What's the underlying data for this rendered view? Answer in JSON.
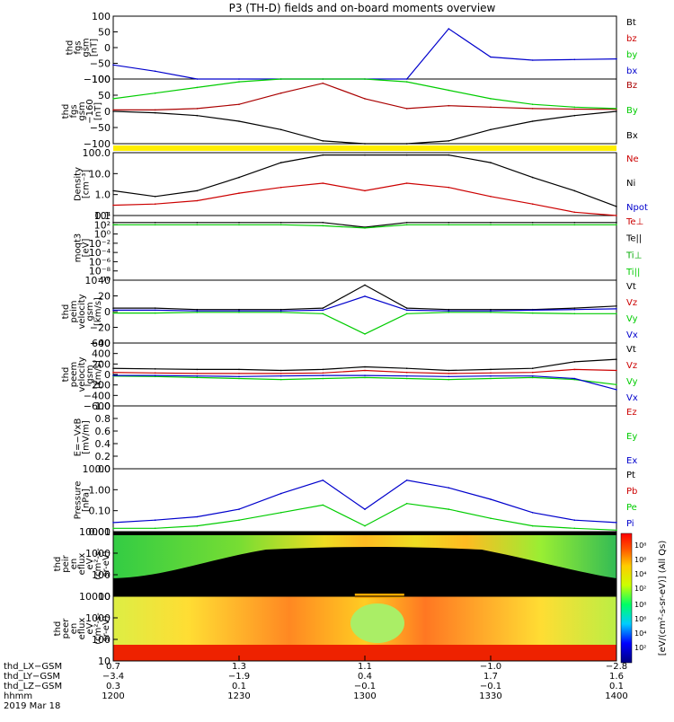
{
  "title": "P3 (TH-D) fields and on-board moments overview",
  "panels": [
    {
      "ylabel": [
        "thd",
        "fgs",
        "gsm",
        "[nT]"
      ],
      "yticks": [
        "100",
        "50",
        "0",
        "−50",
        "−100"
      ],
      "legend": [
        {
          "label": "Bt",
          "color": "#000000"
        },
        {
          "label": "bz",
          "color": "#cc0000"
        },
        {
          "label": "by",
          "color": "#00cc00"
        },
        {
          "label": "bx",
          "color": "#0000cc"
        }
      ]
    },
    {
      "ylabel": [
        "thd",
        "fgs",
        "gsm",
        "−160",
        "[nT]"
      ],
      "yticks": [
        "100",
        "50",
        "0",
        "−50",
        "−100"
      ],
      "legend": [
        {
          "label": "Bz",
          "color": "#aa0000"
        },
        {
          "label": "By",
          "color": "#00cc00"
        },
        {
          "label": "Bx",
          "color": "#000000"
        }
      ]
    },
    {
      "ylabel": [
        "Density",
        "[cm⁻³]"
      ],
      "yticks": [
        "100.0",
        "10.0",
        "1.0",
        "0.1"
      ],
      "legend": [
        {
          "label": "Ne",
          "color": "#cc0000"
        },
        {
          "label": "Ni",
          "color": "#000000"
        },
        {
          "label": "Npot",
          "color": "#0000cc"
        }
      ]
    },
    {
      "ylabel": [
        "moqt3",
        "[eV]"
      ],
      "yticks": [
        "10⁴",
        "10²",
        "10⁰",
        "10⁻²",
        "10⁻⁴",
        "10⁻⁶",
        "10⁻⁸",
        "10⁻¹⁰"
      ],
      "legend": [
        {
          "label": "Te⊥",
          "color": "#cc0000"
        },
        {
          "label": "Te||",
          "color": "#000000"
        },
        {
          "label": "Ti⊥",
          "color": "#00aa00"
        },
        {
          "label": "Ti||",
          "color": "#00cc00"
        }
      ]
    },
    {
      "ylabel": [
        "thd",
        "peim",
        "velocity",
        "gsm",
        "[km/s]"
      ],
      "yticks": [
        "40",
        "20",
        "0",
        "−20",
        "−40"
      ],
      "legend": [
        {
          "label": "Vt",
          "color": "#000000"
        },
        {
          "label": "Vz",
          "color": "#cc0000"
        },
        {
          "label": "Vy",
          "color": "#00cc00"
        },
        {
          "label": "Vx",
          "color": "#0000cc"
        }
      ]
    },
    {
      "ylabel": [
        "thd",
        "peem",
        "velocity",
        "gsm",
        "[km/s]"
      ],
      "yticks": [
        "600",
        "400",
        "200",
        "0",
        "−200",
        "−400",
        "−600"
      ],
      "legend": [
        {
          "label": "Vt",
          "color": "#000000"
        },
        {
          "label": "Vz",
          "color": "#cc0000"
        },
        {
          "label": "Vy",
          "color": "#00cc00"
        },
        {
          "label": "Vx",
          "color": "#0000cc"
        }
      ]
    },
    {
      "ylabel": [
        "E=−VxB",
        "[mV/m]"
      ],
      "yticks": [
        "1.0",
        "0.8",
        "0.6",
        "0.4",
        "0.2",
        "0.0"
      ],
      "legend": [
        {
          "label": "Ez",
          "color": "#cc0000"
        },
        {
          "label": "Ey",
          "color": "#00cc00"
        },
        {
          "label": "Ex",
          "color": "#0000cc"
        }
      ]
    },
    {
      "ylabel": [
        "Pressure",
        "[nPa]"
      ],
      "yticks": [
        "10.00",
        "1.00",
        "0.10",
        "0.01"
      ],
      "legend": [
        {
          "label": "Pt",
          "color": "#000000"
        },
        {
          "label": "Pb",
          "color": "#cc0000"
        },
        {
          "label": "Pe",
          "color": "#00cc00"
        },
        {
          "label": "Pi",
          "color": "#0000cc"
        }
      ]
    },
    {
      "ylabel": [
        "thd",
        "peir",
        "en",
        "eflux",
        "eV",
        "(cm²-s-",
        "sr-eV)"
      ],
      "yticks": [
        "10000",
        "1000",
        "100",
        "10"
      ],
      "legend": []
    },
    {
      "ylabel": [
        "thd",
        "peer",
        "en",
        "eflux",
        "eV",
        "(cm²-s-",
        "sr-eV)"
      ],
      "yticks": [
        "10000",
        "1000",
        "100",
        "10"
      ],
      "legend": []
    }
  ],
  "colorbar": {
    "label": "[eV/(cm²-s-sr-eV)] (All Qs)",
    "ticks_top": [
      "10⁸",
      "10⁶",
      "10⁴",
      "10²"
    ],
    "ticks_bottom": [
      "10⁸",
      "10⁶",
      "10⁴",
      "10²"
    ]
  },
  "xaxis": {
    "row_labels": [
      "thd_LX−GSM",
      "thd_LY−GSM",
      "thd_LZ−GSM",
      "hhmm",
      "2019 Mar 18"
    ],
    "columns": [
      {
        "lx": "0.7",
        "ly": "−3.4",
        "lz": "0.3",
        "hhmm": "1200"
      },
      {
        "lx": "1.3",
        "ly": "−1.9",
        "lz": "0.1",
        "hhmm": "1230"
      },
      {
        "lx": "1.1",
        "ly": "0.4",
        "lz": "−0.1",
        "hhmm": "1300"
      },
      {
        "lx": "−1.0",
        "ly": "1.7",
        "lz": "−0.1",
        "hhmm": "1330"
      },
      {
        "lx": "−2.8",
        "ly": "1.6",
        "lz": "0.1",
        "hhmm": "1400"
      }
    ]
  },
  "chart_data": {
    "type": "line",
    "title": "P3 (TH-D) fields and on-board moments overview",
    "x": [
      1200,
      1210,
      1220,
      1230,
      1240,
      1250,
      1300,
      1310,
      1320,
      1330,
      1340,
      1350,
      1400
    ],
    "xlabel": "hhmm",
    "panels": [
      {
        "name": "fgs gsm",
        "ylim": [
          -100,
          100
        ],
        "series": [
          {
            "name": "bx",
            "values": [
              -55,
              -75,
              -100,
              -100,
              -100,
              -100,
              -100,
              -100,
              60,
              -30,
              -40,
              -38,
              -36
            ]
          }
        ]
      },
      {
        "name": "fgs gsm -160",
        "ylim": [
          -120,
          110
        ],
        "series": [
          {
            "name": "Bz",
            "values": [
              0,
              0,
              5,
              20,
              60,
              95,
              40,
              5,
              15,
              10,
              5,
              3,
              2
            ]
          },
          {
            "name": "By",
            "values": [
              40,
              60,
              80,
              100,
              110,
              110,
              110,
              100,
              70,
              40,
              20,
              10,
              5
            ]
          },
          {
            "name": "Bx",
            "values": [
              -5,
              -10,
              -20,
              -40,
              -70,
              -110,
              -120,
              -120,
              -110,
              -70,
              -40,
              -20,
              -5
            ]
          }
        ]
      },
      {
        "name": "Density",
        "ylim": [
          0.1,
          200
        ],
        "log": true,
        "series": [
          {
            "name": "Ni",
            "values": [
              2,
              1,
              2,
              10,
              60,
              150,
              150,
              150,
              150,
              60,
              10,
              2,
              0.3
            ]
          },
          {
            "name": "Ne",
            "values": [
              0.35,
              0.4,
              0.6,
              1.5,
              3,
              5,
              2,
              5,
              3,
              1,
              0.4,
              0.15,
              0.1
            ]
          }
        ]
      },
      {
        "name": "moqt3",
        "ylim": [
          1e-10,
          10000.0
        ],
        "log": true,
        "series": [
          {
            "name": "Te||",
            "values": [
              300,
              300,
              300,
              300,
              300,
              300,
              30,
              300,
              300,
              300,
              300,
              300,
              300
            ]
          },
          {
            "name": "Ti||",
            "values": [
              100,
              100,
              100,
              100,
              100,
              60,
              20,
              100,
              100,
              100,
              100,
              100,
              100
            ]
          }
        ]
      },
      {
        "name": "peim velocity",
        "ylim": [
          -45,
          45
        ],
        "series": [
          {
            "name": "Vt",
            "values": [
              5,
              5,
              3,
              3,
              3,
              5,
              38,
              5,
              3,
              3,
              3,
              5,
              8
            ]
          },
          {
            "name": "Vy",
            "values": [
              -2,
              -2,
              -1,
              -1,
              -1,
              -3,
              -32,
              -3,
              -1,
              -1,
              -2,
              -3,
              -3
            ]
          },
          {
            "name": "Vx",
            "values": [
              2,
              2,
              1,
              1,
              1,
              2,
              22,
              2,
              1,
              1,
              2,
              3,
              4
            ]
          }
        ]
      },
      {
        "name": "peem velocity",
        "ylim": [
          -620,
          620
        ],
        "series": [
          {
            "name": "Vt",
            "values": [
              120,
              110,
              100,
              100,
              80,
              100,
              150,
              120,
              80,
              100,
              120,
              250,
              300
            ]
          },
          {
            "name": "Vz",
            "values": [
              40,
              30,
              20,
              20,
              20,
              30,
              80,
              40,
              20,
              30,
              40,
              100,
              80
            ]
          },
          {
            "name": "Vy",
            "values": [
              -30,
              -40,
              -60,
              -80,
              -100,
              -80,
              -60,
              -80,
              -100,
              -80,
              -60,
              -100,
              -200
            ]
          },
          {
            "name": "Vx",
            "values": [
              -20,
              -20,
              -30,
              -40,
              -30,
              -20,
              -20,
              -30,
              -40,
              -30,
              -30,
              -80,
              -300
            ]
          }
        ]
      },
      {
        "name": "Pressure",
        "ylim": [
          0.01,
          20
        ],
        "log": true,
        "series": [
          {
            "name": "Pi",
            "values": [
              0.03,
              0.04,
              0.06,
              0.15,
              1,
              5,
              0.15,
              5,
              2,
              0.5,
              0.1,
              0.04,
              0.03
            ]
          },
          {
            "name": "Pe",
            "values": [
              0.015,
              0.015,
              0.02,
              0.04,
              0.1,
              0.25,
              0.02,
              0.3,
              0.15,
              0.05,
              0.02,
              0.015,
              0.012
            ]
          }
        ]
      }
    ]
  }
}
